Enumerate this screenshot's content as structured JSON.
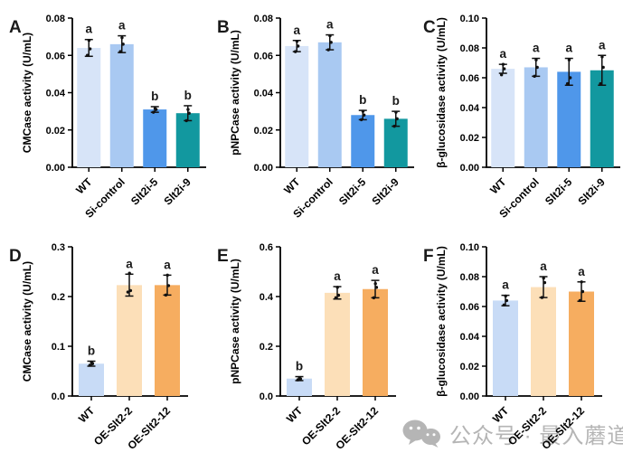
{
  "page": {
    "background": "#ffffff",
    "axis_color": "#000000",
    "letter_color": "#1a1a1a"
  },
  "watermark": {
    "icon": "wechat-icon",
    "text": "公众号 · 最入蘑道",
    "color": "#b5b5b5"
  },
  "chart_data": [
    {
      "panel": "A",
      "type": "bar",
      "ylabel": "CMCase activity (U/mL)",
      "ylim": [
        0,
        0.08
      ],
      "yticks": [
        "0.00",
        "0.02",
        "0.04",
        "0.06",
        "0.08"
      ],
      "categories": [
        "WT",
        "Si-control",
        "Slt2i-5",
        "Slt2i-9"
      ],
      "values": [
        0.064,
        0.066,
        0.031,
        0.029
      ],
      "errors": [
        0.0045,
        0.0045,
        0.0015,
        0.004
      ],
      "points": [
        [
          0.06,
          0.0635,
          0.068
        ],
        [
          0.062,
          0.066,
          0.0695
        ],
        [
          0.0295,
          0.031,
          0.0315
        ],
        [
          0.025,
          0.029,
          0.031
        ]
      ],
      "sig_letters": [
        "a",
        "a",
        "b",
        "b"
      ],
      "bar_colors": [
        "#d7e4f8",
        "#a9c9f2",
        "#4f97ea",
        "#12989f"
      ],
      "grid": false,
      "legend": "none"
    },
    {
      "panel": "B",
      "type": "bar",
      "ylabel": "pNPCase activity (U/mL)",
      "ylim": [
        0,
        0.08
      ],
      "yticks": [
        "0.00",
        "0.02",
        "0.04",
        "0.06",
        "0.08"
      ],
      "categories": [
        "WT",
        "Si-control",
        "Slt2i-5",
        "Slt2i-9"
      ],
      "values": [
        0.065,
        0.067,
        0.028,
        0.026
      ],
      "errors": [
        0.003,
        0.004,
        0.0025,
        0.004
      ],
      "points": [
        [
          0.062,
          0.065,
          0.0675
        ],
        [
          0.063,
          0.067,
          0.0705
        ],
        [
          0.0255,
          0.028,
          0.03
        ],
        [
          0.022,
          0.026,
          0.0295
        ]
      ],
      "sig_letters": [
        "a",
        "a",
        "b",
        "b"
      ],
      "bar_colors": [
        "#d7e4f8",
        "#a9c9f2",
        "#4f97ea",
        "#12989f"
      ],
      "grid": false,
      "legend": "none"
    },
    {
      "panel": "C",
      "type": "bar",
      "ylabel": "β-glucosidase activity (U/mL)",
      "ylim": [
        0,
        0.1
      ],
      "yticks": [
        "0.00",
        "0.02",
        "0.04",
        "0.06",
        "0.08",
        "0.10"
      ],
      "categories": [
        "WT",
        "Si-control",
        "Slt2i-5",
        "Slt2i-9"
      ],
      "values": [
        0.066,
        0.067,
        0.064,
        0.065
      ],
      "errors": [
        0.003,
        0.006,
        0.009,
        0.01
      ],
      "points": [
        [
          0.062,
          0.066,
          0.069
        ],
        [
          0.061,
          0.067,
          0.072
        ],
        [
          0.056,
          0.06,
          0.072
        ],
        [
          0.056,
          0.067,
          0.074
        ]
      ],
      "sig_letters": [
        "a",
        "a",
        "a",
        "a"
      ],
      "bar_colors": [
        "#d7e4f8",
        "#a9c9f2",
        "#4f97ea",
        "#12989f"
      ],
      "grid": false,
      "legend": "none"
    },
    {
      "panel": "D",
      "type": "bar",
      "ylabel": "CMCase activity (U/mL)",
      "ylim": [
        0,
        0.3
      ],
      "yticks": [
        "0.0",
        "0.1",
        "0.2",
        "0.3"
      ],
      "categories": [
        "WT",
        "OE-Slt2-2",
        "OE-Slt2-12"
      ],
      "values": [
        0.065,
        0.223,
        0.223
      ],
      "errors": [
        0.005,
        0.022,
        0.02
      ],
      "points": [
        [
          0.062,
          0.065,
          0.068
        ],
        [
          0.209,
          0.212,
          0.247
        ],
        [
          0.203,
          0.222,
          0.243
        ]
      ],
      "sig_letters": [
        "b",
        "a",
        "a"
      ],
      "bar_colors": [
        "#c8dbf6",
        "#fcdfb8",
        "#f6ad60"
      ],
      "grid": false,
      "legend": "none"
    },
    {
      "panel": "E",
      "type": "bar",
      "ylabel": "pNPCase activity (U/mL)",
      "ylim": [
        0,
        0.6
      ],
      "yticks": [
        "0.0",
        "0.2",
        "0.4",
        "0.6"
      ],
      "categories": [
        "WT",
        "OE-Slt2-2",
        "OE-Slt2-12"
      ],
      "values": [
        0.07,
        0.415,
        0.43
      ],
      "errors": [
        0.008,
        0.025,
        0.035
      ],
      "points": [
        [
          0.065,
          0.069,
          0.073
        ],
        [
          0.395,
          0.405,
          0.437
        ],
        [
          0.395,
          0.437,
          0.452
        ]
      ],
      "sig_letters": [
        "b",
        "a",
        "a"
      ],
      "bar_colors": [
        "#c8dbf6",
        "#fcdfb8",
        "#f6ad60"
      ],
      "grid": false,
      "legend": "none"
    },
    {
      "panel": "F",
      "type": "bar",
      "ylabel": "β-glucosidase activity (U/mL)",
      "ylim": [
        0,
        0.1
      ],
      "yticks": [
        "0.00",
        "0.02",
        "0.04",
        "0.06",
        "0.08",
        "0.10"
      ],
      "categories": [
        "WT",
        "OE-Slt2-2",
        "OE-Slt2-12"
      ],
      "values": [
        0.064,
        0.073,
        0.07
      ],
      "errors": [
        0.0035,
        0.007,
        0.0065
      ],
      "points": [
        [
          0.061,
          0.064,
          0.067
        ],
        [
          0.066,
          0.076,
          0.079
        ],
        [
          0.064,
          0.07,
          0.0765
        ]
      ],
      "sig_letters": [
        "a",
        "a",
        "a"
      ],
      "bar_colors": [
        "#c8dbf6",
        "#fcdfb8",
        "#f6ad60"
      ],
      "grid": false,
      "legend": "none"
    }
  ]
}
